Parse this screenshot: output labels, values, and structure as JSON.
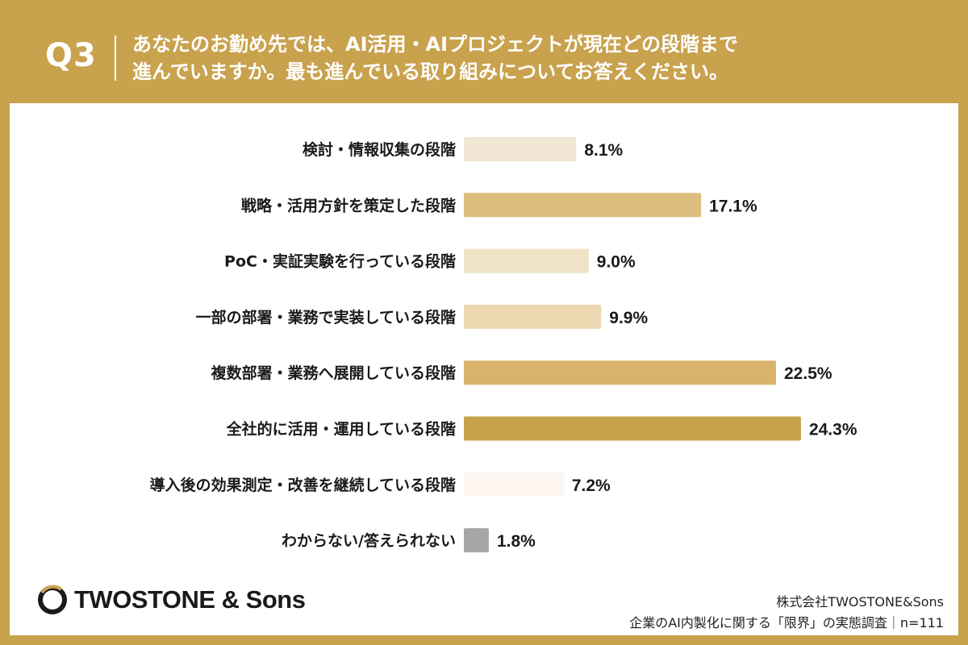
{
  "question": {
    "label": "Q3",
    "line1": "あなたのお勤め先では、AI活用・AIプロジェクトが現在どの段階まで",
    "line2": "進んでいますか。最も進んでいる取り組みについてお答えください。"
  },
  "logo": {
    "text": "TWOSTONE & Sons",
    "icon": "twostone-logo-icon"
  },
  "footer": {
    "company": "株式会社TWOSTONE&Sons",
    "survey": "企業のAI内製化に関する「限界」の実態調査｜n=111"
  },
  "colors": {
    "background": "#c9a24e",
    "panel": "#ffffff",
    "label": "#1a1a1a"
  },
  "chart_data": {
    "type": "bar",
    "orientation": "horizontal",
    "categories": [
      "検討・情報収集の段階",
      "戦略・活用方針を策定した段階",
      "PoC・実証実験を行っている段階",
      "一部の部署・業務で実装している段階",
      "複数部署・業務へ展開している段階",
      "全社的に活用・運用している段階",
      "導入後の効果測定・改善を継続している段階",
      "わからない/答えられない"
    ],
    "values": [
      8.1,
      17.1,
      9.0,
      9.9,
      22.5,
      24.3,
      7.2,
      1.8
    ],
    "value_labels": [
      "8.1%",
      "17.1%",
      "9.0%",
      "9.9%",
      "22.5%",
      "24.3%",
      "7.2%",
      "1.8%"
    ],
    "bar_colors": [
      "#f0e6d3",
      "#dcbd7d",
      "#efe2c6",
      "#ebd8b0",
      "#d8b36c",
      "#c9a24e",
      "#fdf5f0",
      "#a7a5a8"
    ],
    "xlabel": "",
    "ylabel": "",
    "unit": "%",
    "grid": false
  }
}
